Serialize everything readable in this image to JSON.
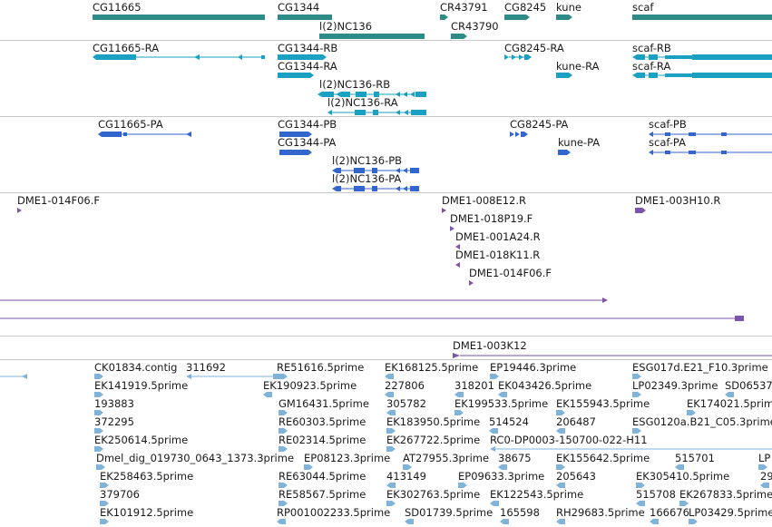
{
  "colors": {
    "gene": "#2e8b87",
    "transcript": "#1aa0c0",
    "protein": "#3366cc",
    "clone": "#7b56a8",
    "est": "#7fb4d8",
    "separator": "#c8c8c8"
  },
  "tracks": {
    "genes": [
      {
        "label": "CG11665"
      },
      {
        "label": "CG1344"
      },
      {
        "label": "l(2)NC136"
      },
      {
        "label": "CR43791"
      },
      {
        "label": "CR43790"
      },
      {
        "label": "CG8245"
      },
      {
        "label": "kune"
      },
      {
        "label": "scaf"
      }
    ],
    "transcripts": [
      {
        "label": "CG11665-RA"
      },
      {
        "label": "CG1344-RB"
      },
      {
        "label": "CG1344-RA"
      },
      {
        "label": "l(2)NC136-RB"
      },
      {
        "label": "l(2)NC136-RA"
      },
      {
        "label": "CG8245-RA"
      },
      {
        "label": "kune-RA"
      },
      {
        "label": "scaf-RB"
      },
      {
        "label": "scaf-RA"
      }
    ],
    "proteins": [
      {
        "label": "CG11665-PA"
      },
      {
        "label": "CG1344-PB"
      },
      {
        "label": "CG1344-PA"
      },
      {
        "label": "l(2)NC136-PB"
      },
      {
        "label": "l(2)NC136-PA"
      },
      {
        "label": "CG8245-PA"
      },
      {
        "label": "kune-PA"
      },
      {
        "label": "scaf-PB"
      },
      {
        "label": "scaf-PA"
      }
    ],
    "clones": [
      {
        "label": "DME1-014F06.F"
      },
      {
        "label": "DME1-008E12.R"
      },
      {
        "label": "DME1-018P19.F"
      },
      {
        "label": "DME1-001A24.R"
      },
      {
        "label": "DME1-018K11.R"
      },
      {
        "label": "DME1-014F06.F"
      },
      {
        "label": "DME1-003H10.R"
      }
    ],
    "long_clone": {
      "label": "DME1-003K12"
    },
    "ests": [
      {
        "label": "CK01834.contig"
      },
      {
        "label": "311692"
      },
      {
        "label": "RE51616.5prime"
      },
      {
        "label": "EK168125.5prime"
      },
      {
        "label": "EP19446.3prime"
      },
      {
        "label": "ESG017d.E21_F10.3prime"
      },
      {
        "label": "EK141919.5prime"
      },
      {
        "label": "EK190923.5prime"
      },
      {
        "label": "227806"
      },
      {
        "label": "318201"
      },
      {
        "label": "EK043426.5prime"
      },
      {
        "label": "LP02349.3prime"
      },
      {
        "label": "SD06537"
      },
      {
        "label": "193883"
      },
      {
        "label": "GM16431.5prime"
      },
      {
        "label": "305782"
      },
      {
        "label": "EK199533.5prime"
      },
      {
        "label": "EK155943.5prime"
      },
      {
        "label": "EK174021.5prime"
      },
      {
        "label": "372295"
      },
      {
        "label": "RE60303.5prime"
      },
      {
        "label": "EK183950.5prime"
      },
      {
        "label": "514524"
      },
      {
        "label": "206487"
      },
      {
        "label": "ESG0120a.B21_C05.3prime"
      },
      {
        "label": "EK250614.5prime"
      },
      {
        "label": "RE02314.5prime"
      },
      {
        "label": "EK267722.5prime"
      },
      {
        "label": "RC0-DP0003-150700-022-H11"
      },
      {
        "label": "Dmel_dig_019730_0643_1373.3prime"
      },
      {
        "label": "EP08123.3prime"
      },
      {
        "label": "AT27955.3prime"
      },
      {
        "label": "38675"
      },
      {
        "label": "EK155642.5prime"
      },
      {
        "label": "515701"
      },
      {
        "label": "LP"
      },
      {
        "label": "EK258463.5prime"
      },
      {
        "label": "RE63044.5prime"
      },
      {
        "label": "413149"
      },
      {
        "label": "EP09633.3prime"
      },
      {
        "label": "205643"
      },
      {
        "label": "EK305410.5prime"
      },
      {
        "label": "29"
      },
      {
        "label": "379706"
      },
      {
        "label": "RE58567.5prime"
      },
      {
        "label": "EK302763.5prime"
      },
      {
        "label": "EK122543.5prime"
      },
      {
        "label": "515708"
      },
      {
        "label": "EK267833.5prime"
      },
      {
        "label": "EK101912.5prime"
      },
      {
        "label": "RP001002233.5prime"
      },
      {
        "label": "SD01739.5prime"
      },
      {
        "label": "165598"
      },
      {
        "label": "RH29683.5prime"
      },
      {
        "label": "166676"
      },
      {
        "label": "LP03429.5prime"
      }
    ]
  }
}
